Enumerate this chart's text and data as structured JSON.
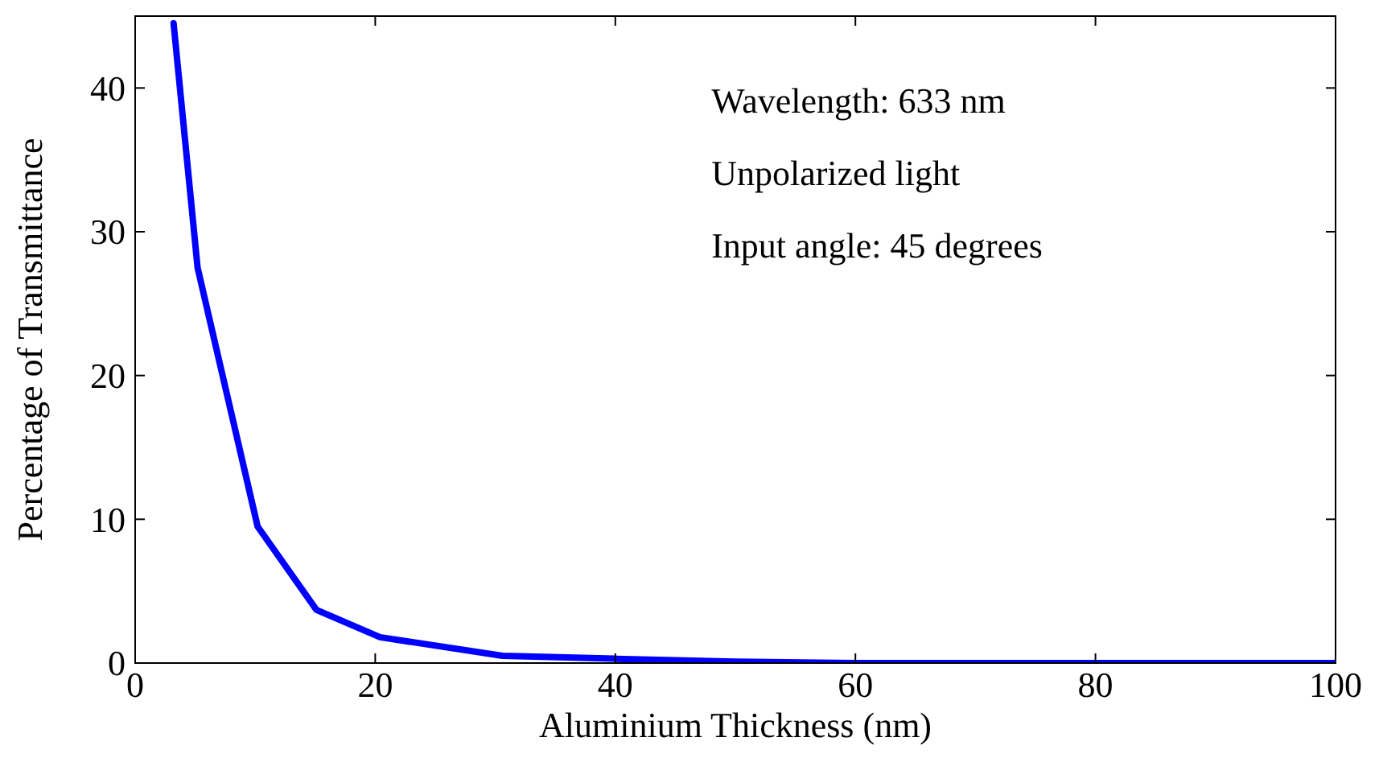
{
  "chart_data": {
    "type": "line",
    "xlabel": "Aluminium Thickness (nm)",
    "ylabel": "Percentage of Transmittance",
    "x": [
      3.2,
      5.2,
      10.2,
      15.1,
      20.4,
      30.6,
      40,
      50,
      60,
      70,
      80,
      90,
      100
    ],
    "series": [
      {
        "color": "#0000ff",
        "values": [
          44.5,
          27.5,
          9.5,
          3.7,
          1.8,
          0.5,
          0.3,
          0.1,
          0,
          0,
          0,
          0,
          0
        ]
      }
    ],
    "xlim": [
      0,
      100
    ],
    "ylim": [
      0,
      45
    ],
    "xticks": [
      0,
      20,
      40,
      60,
      80,
      100
    ],
    "yticks": [
      0,
      10,
      20,
      30,
      40
    ],
    "grid": false,
    "marker": "none",
    "line_style": "solid",
    "annotations": [
      "Wavelength: 633 nm",
      "Unpolarized light",
      "Input angle: 45 degrees"
    ]
  }
}
